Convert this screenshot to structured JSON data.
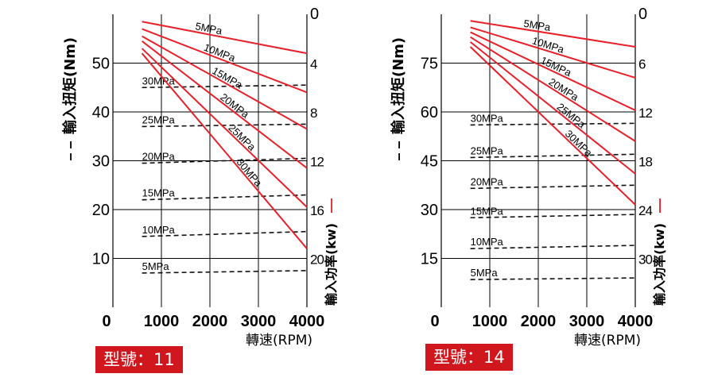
{
  "colors": {
    "torque": "#e8202a",
    "power": "#111111",
    "badge": "#d0171d"
  },
  "chart_data": [
    {
      "type": "line",
      "model_label": "型號：11",
      "xlabel": "轉速(RPM)",
      "ylabel_left": "輸入扭矩(Nm)",
      "ylabel_right": "輸入功率(kw)",
      "left_legend_mark": "– –",
      "right_legend_mark": "—",
      "xlim": [
        0,
        4000
      ],
      "x_ticks": [
        "0",
        "1000",
        "2000",
        "3000",
        "4000"
      ],
      "ylim_left": [
        0,
        60
      ],
      "y_ticks_left": [
        "10",
        "20",
        "30",
        "40",
        "50"
      ],
      "ylim_right": [
        0,
        24
      ],
      "y_ticks_right": [
        "0",
        "4",
        "8",
        "12",
        "16",
        "20"
      ],
      "power_series": [
        {
          "name": "5MPa",
          "x": [
            600,
            4000
          ],
          "y": [
            58.5,
            52
          ]
        },
        {
          "name": "10MPa",
          "x": [
            600,
            4000
          ],
          "y": [
            57,
            44
          ]
        },
        {
          "name": "15MPa",
          "x": [
            600,
            4000
          ],
          "y": [
            55.5,
            36.5
          ]
        },
        {
          "name": "20MPa",
          "x": [
            600,
            4000
          ],
          "y": [
            54.5,
            28.5
          ]
        },
        {
          "name": "25MPa",
          "x": [
            600,
            4000
          ],
          "y": [
            53,
            20.5
          ]
        },
        {
          "name": "30MPa",
          "x": [
            600,
            4000
          ],
          "y": [
            52,
            12
          ]
        }
      ],
      "torque_series": [
        {
          "name": "30MPa",
          "x": [
            600,
            4000
          ],
          "y": [
            45,
            45.5
          ]
        },
        {
          "name": "25MPa",
          "x": [
            600,
            4000
          ],
          "y": [
            37,
            37.5
          ]
        },
        {
          "name": "20MPa",
          "x": [
            600,
            4000
          ],
          "y": [
            29.5,
            30.5
          ]
        },
        {
          "name": "15MPa",
          "x": [
            600,
            4000
          ],
          "y": [
            22,
            23
          ]
        },
        {
          "name": "10MPa",
          "x": [
            600,
            4000
          ],
          "y": [
            14.5,
            15.5
          ]
        },
        {
          "name": "5MPa",
          "x": [
            600,
            4000
          ],
          "y": [
            7,
            7.5
          ]
        }
      ]
    },
    {
      "type": "line",
      "model_label": "型號：14",
      "xlabel": "轉速(RPM)",
      "ylabel_left": "輸入扭矩(Nm)",
      "ylabel_right": "輸入功率(kw)",
      "left_legend_mark": "– –",
      "right_legend_mark": "—",
      "xlim": [
        0,
        4000
      ],
      "x_ticks": [
        "0",
        "1000",
        "2000",
        "3000",
        "4000"
      ],
      "ylim_left": [
        0,
        90
      ],
      "y_ticks_left": [
        "15",
        "30",
        "45",
        "60",
        "75"
      ],
      "ylim_right": [
        0,
        36
      ],
      "y_ticks_right": [
        "0",
        "6",
        "12",
        "18",
        "24",
        "30"
      ],
      "power_series": [
        {
          "name": "5MPa",
          "x": [
            600,
            4000
          ],
          "y": [
            88,
            80
          ]
        },
        {
          "name": "10MPa",
          "x": [
            600,
            4000
          ],
          "y": [
            86,
            70.5
          ]
        },
        {
          "name": "15MPa",
          "x": [
            600,
            4000
          ],
          "y": [
            84.5,
            60.5
          ]
        },
        {
          "name": "20MPa",
          "x": [
            600,
            4000
          ],
          "y": [
            83,
            51
          ]
        },
        {
          "name": "25MPa",
          "x": [
            600,
            4000
          ],
          "y": [
            81.5,
            41
          ]
        },
        {
          "name": "30MPa",
          "x": [
            600,
            4000
          ],
          "y": [
            80,
            31.5
          ]
        }
      ],
      "torque_series": [
        {
          "name": "30MPa",
          "x": [
            600,
            4000
          ],
          "y": [
            56,
            56.5
          ]
        },
        {
          "name": "25MPa",
          "x": [
            600,
            4000
          ],
          "y": [
            46,
            47
          ]
        },
        {
          "name": "20MPa",
          "x": [
            600,
            4000
          ],
          "y": [
            36.5,
            37.5
          ]
        },
        {
          "name": "15MPa",
          "x": [
            600,
            4000
          ],
          "y": [
            27.5,
            28.5
          ]
        },
        {
          "name": "10MPa",
          "x": [
            600,
            4000
          ],
          "y": [
            18,
            19
          ]
        },
        {
          "name": "5MPa",
          "x": [
            600,
            4000
          ],
          "y": [
            8.5,
            9
          ]
        }
      ]
    }
  ]
}
